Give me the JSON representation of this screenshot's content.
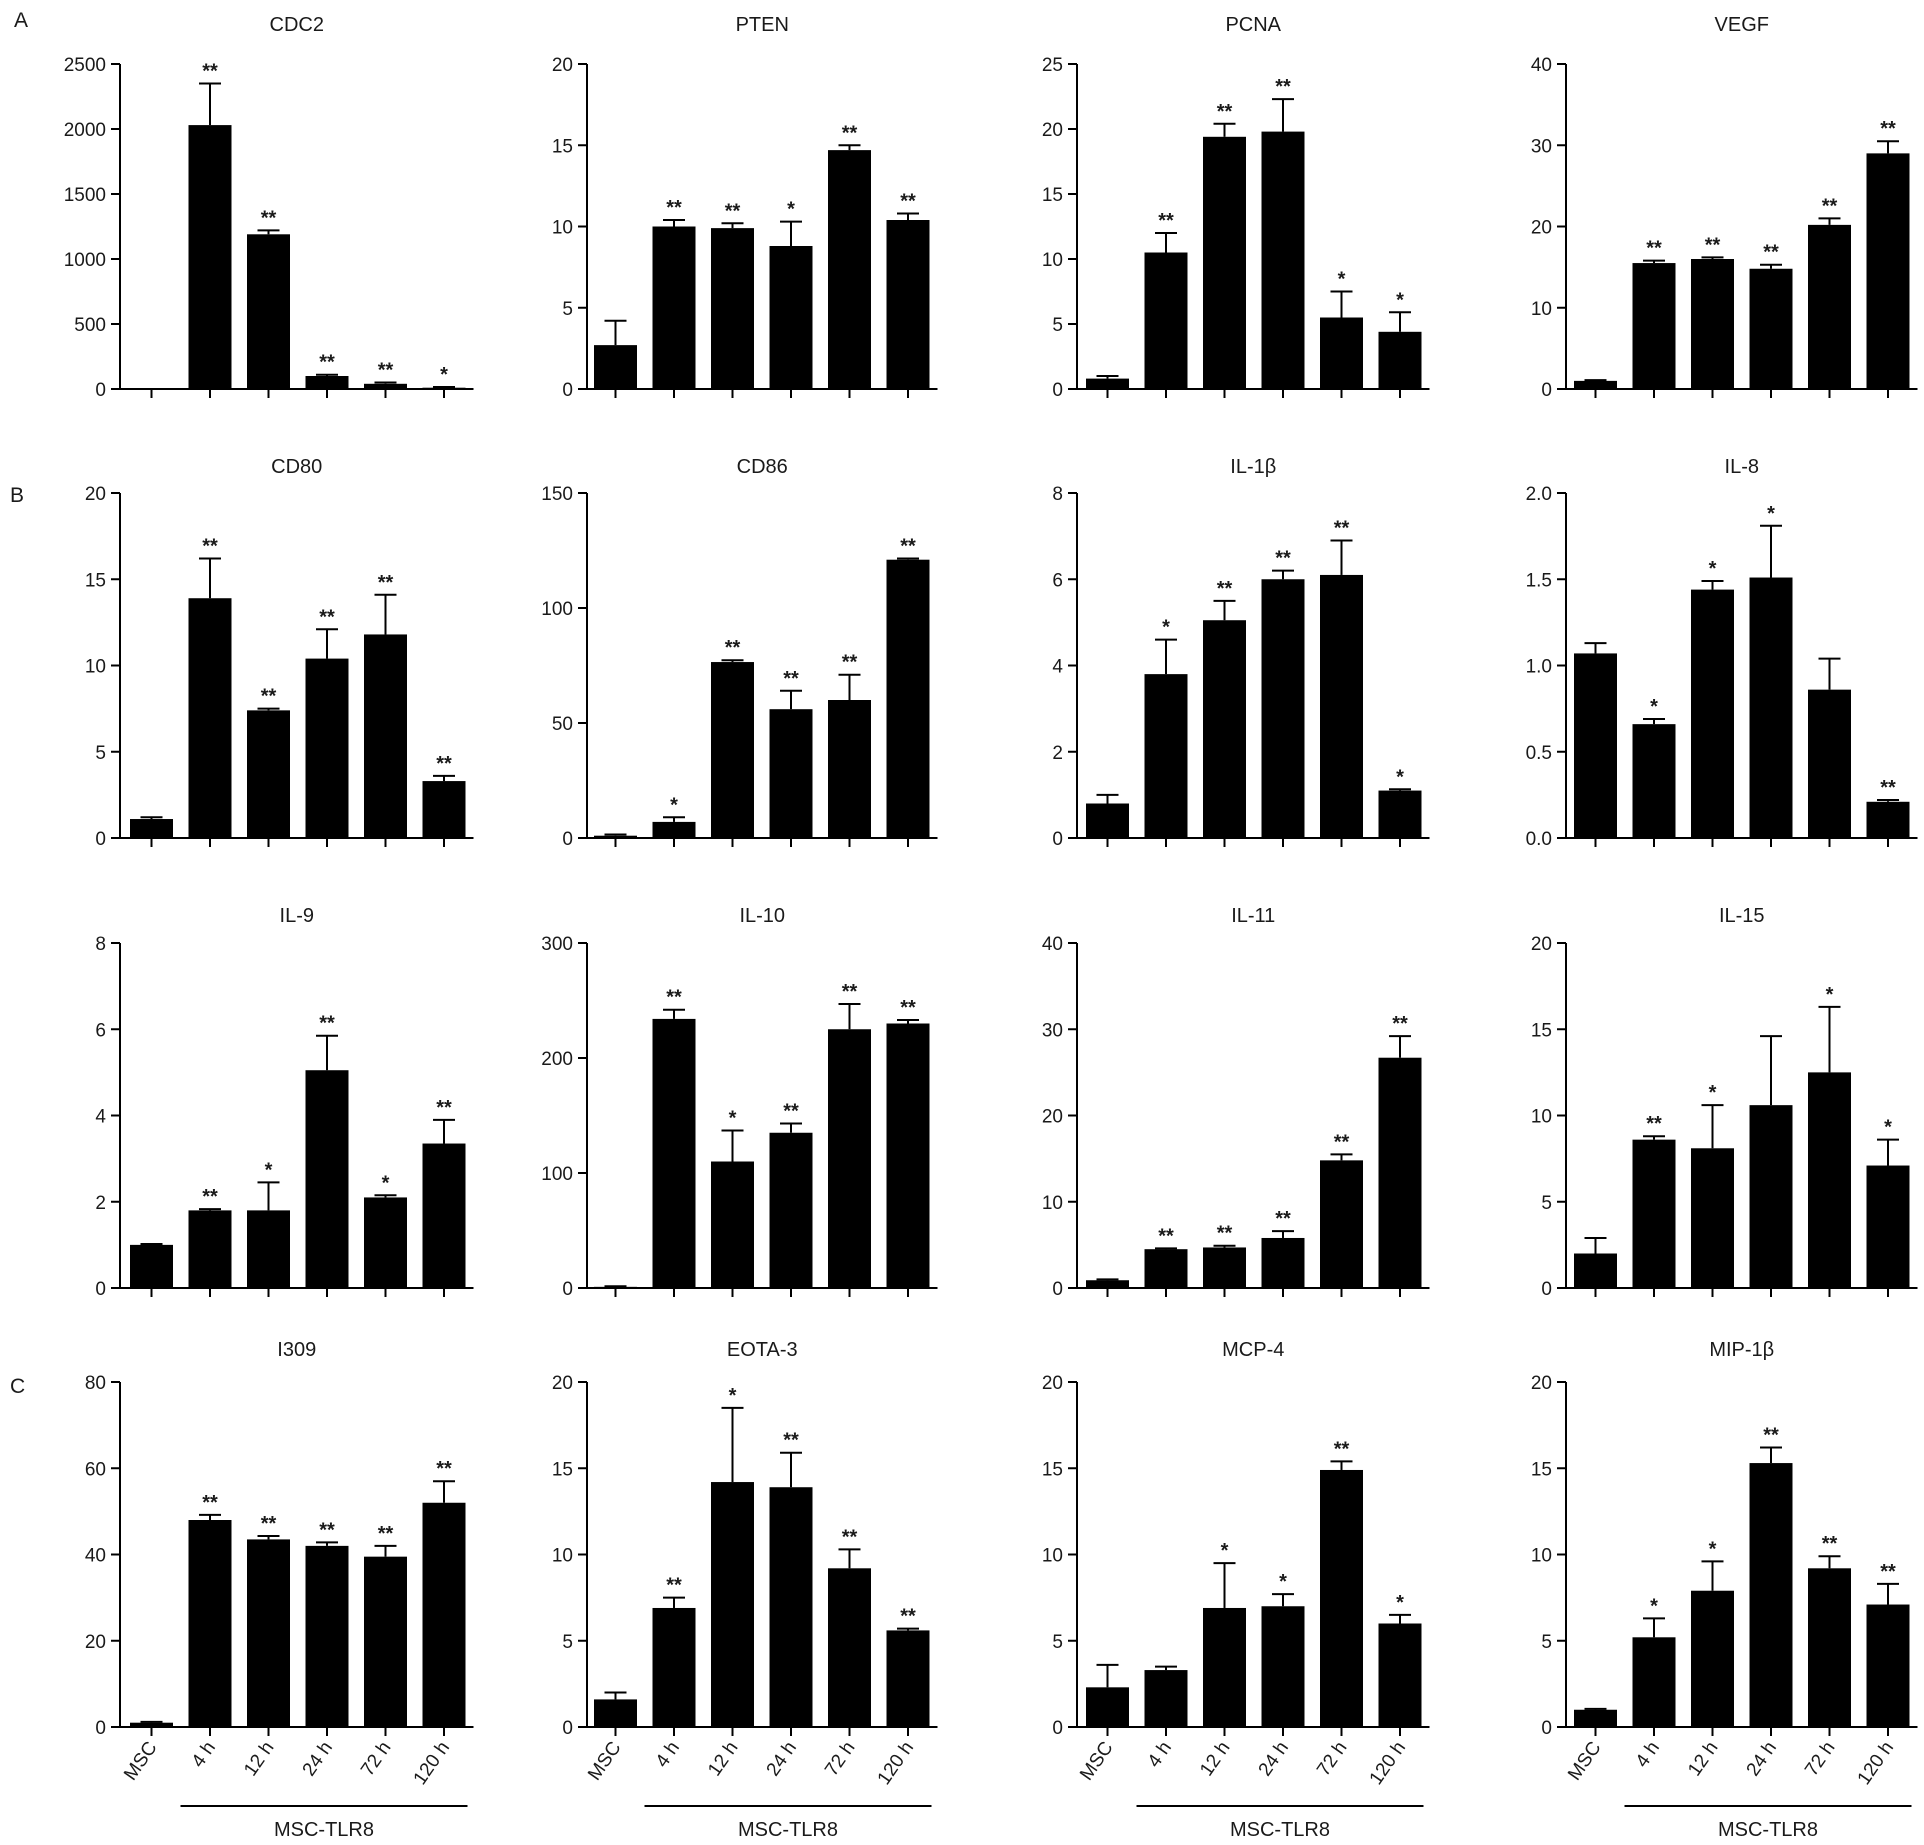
{
  "figure": {
    "panel_labels": [
      "A",
      "B",
      "C"
    ],
    "x_categories": [
      "MSC",
      "4 h",
      "12 h",
      "24 h",
      "72 h",
      "120 h"
    ],
    "group_label": "MSC-TLR8"
  },
  "chart_data": [
    {
      "type": "bar",
      "title": "CDC2",
      "categories": [
        "MSC",
        "4 h",
        "12 h",
        "24 h",
        "72 h",
        "120 h"
      ],
      "values": [
        0,
        2030,
        1190,
        100,
        40,
        10
      ],
      "errors": [
        0,
        320,
        30,
        10,
        10,
        5
      ],
      "significance": [
        "",
        "**",
        "**",
        "**",
        "**",
        "*"
      ],
      "ylim": [
        0,
        2500
      ],
      "yticks": [
        "0",
        "500",
        "1000",
        "1500",
        "2000",
        "2500"
      ]
    },
    {
      "type": "bar",
      "title": "PTEN",
      "categories": [
        "MSC",
        "4 h",
        "12 h",
        "24 h",
        "72 h",
        "120 h"
      ],
      "values": [
        2.7,
        10.0,
        9.9,
        8.8,
        14.7,
        10.4
      ],
      "errors": [
        1.5,
        0.4,
        0.3,
        1.5,
        0.3,
        0.4
      ],
      "significance": [
        "",
        "**",
        "**",
        "*",
        "**",
        "**"
      ],
      "ylim": [
        0,
        20
      ],
      "yticks": [
        "0",
        "5",
        "10",
        "15",
        "20"
      ]
    },
    {
      "type": "bar",
      "title": "PCNA",
      "categories": [
        "MSC",
        "4 h",
        "12 h",
        "24 h",
        "72 h",
        "120 h"
      ],
      "values": [
        0.8,
        10.5,
        19.4,
        19.8,
        5.5,
        4.4
      ],
      "errors": [
        0.2,
        1.5,
        1.0,
        2.5,
        2.0,
        1.5
      ],
      "significance": [
        "",
        "**",
        "**",
        "**",
        "*",
        "*"
      ],
      "ylim": [
        0,
        25
      ],
      "yticks": [
        "0",
        "5",
        "10",
        "15",
        "20",
        "25"
      ]
    },
    {
      "type": "bar",
      "title": "VEGF",
      "categories": [
        "MSC",
        "4 h",
        "12 h",
        "24 h",
        "72 h",
        "120 h"
      ],
      "values": [
        1.0,
        15.5,
        16.0,
        14.8,
        20.2,
        29.0
      ],
      "errors": [
        0.1,
        0.3,
        0.2,
        0.5,
        0.8,
        1.5
      ],
      "significance": [
        "",
        "**",
        "**",
        "**",
        "**",
        "**"
      ],
      "ylim": [
        0,
        40
      ],
      "yticks": [
        "0",
        "10",
        "20",
        "30",
        "40"
      ]
    },
    {
      "type": "bar",
      "title": "CD80",
      "categories": [
        "MSC",
        "4 h",
        "12 h",
        "24 h",
        "72 h",
        "120 h"
      ],
      "values": [
        1.1,
        13.9,
        7.4,
        10.4,
        11.8,
        3.3
      ],
      "errors": [
        0.1,
        2.3,
        0.1,
        1.7,
        2.3,
        0.3
      ],
      "significance": [
        "",
        "**",
        "**",
        "**",
        "**",
        "**"
      ],
      "ylim": [
        0,
        20
      ],
      "yticks": [
        "0",
        "5",
        "10",
        "15",
        "20"
      ]
    },
    {
      "type": "bar",
      "title": "CD86",
      "categories": [
        "MSC",
        "4 h",
        "12 h",
        "24 h",
        "72 h",
        "120 h"
      ],
      "values": [
        1.0,
        7.0,
        76.5,
        56.0,
        60.0,
        121.0
      ],
      "errors": [
        0.5,
        2.0,
        0.8,
        8.0,
        11.0,
        0.5
      ],
      "significance": [
        "",
        "*",
        "**",
        "**",
        "**",
        "**"
      ],
      "ylim": [
        0,
        150
      ],
      "yticks": [
        "0",
        "50",
        "100",
        "150"
      ]
    },
    {
      "type": "bar",
      "title": "IL-1β",
      "categories": [
        "MSC",
        "4 h",
        "12 h",
        "24 h",
        "72 h",
        "120 h"
      ],
      "values": [
        0.8,
        3.8,
        5.05,
        6.0,
        6.1,
        1.1
      ],
      "errors": [
        0.2,
        0.8,
        0.45,
        0.2,
        0.8,
        0.03
      ],
      "significance": [
        "",
        "*",
        "**",
        "**",
        "**",
        "*"
      ],
      "ylim": [
        0,
        8
      ],
      "yticks": [
        "0",
        "2",
        "4",
        "6",
        "8"
      ]
    },
    {
      "type": "bar",
      "title": "IL-8",
      "categories": [
        "MSC",
        "4 h",
        "12 h",
        "24 h",
        "72 h",
        "120 h"
      ],
      "values": [
        1.07,
        0.66,
        1.44,
        1.51,
        0.86,
        0.21
      ],
      "errors": [
        0.06,
        0.03,
        0.05,
        0.3,
        0.18,
        0.01
      ],
      "significance": [
        "",
        "*",
        "*",
        "*",
        "",
        "**"
      ],
      "ylim": [
        0,
        2.0
      ],
      "yticks": [
        "0.0",
        "0.5",
        "1.0",
        "1.5",
        "2.0"
      ]
    },
    {
      "type": "bar",
      "title": "IL-9",
      "categories": [
        "MSC",
        "4 h",
        "12 h",
        "24 h",
        "72 h",
        "120 h"
      ],
      "values": [
        1.0,
        1.8,
        1.8,
        5.05,
        2.1,
        3.35
      ],
      "errors": [
        0.02,
        0.03,
        0.65,
        0.8,
        0.05,
        0.55
      ],
      "significance": [
        "",
        "**",
        "*",
        "**",
        "*",
        "**"
      ],
      "ylim": [
        0,
        8
      ],
      "yticks": [
        "0",
        "2",
        "4",
        "6",
        "8"
      ]
    },
    {
      "type": "bar",
      "title": "IL-10",
      "categories": [
        "MSC",
        "4 h",
        "12 h",
        "24 h",
        "72 h",
        "120 h"
      ],
      "values": [
        1,
        234,
        110,
        135,
        225,
        230
      ],
      "errors": [
        0.5,
        8,
        27,
        8,
        22,
        3
      ],
      "significance": [
        "",
        "**",
        "*",
        "**",
        "**",
        "**"
      ],
      "ylim": [
        0,
        300
      ],
      "yticks": [
        "0",
        "100",
        "200",
        "300"
      ]
    },
    {
      "type": "bar",
      "title": "IL-11",
      "categories": [
        "MSC",
        "4 h",
        "12 h",
        "24 h",
        "72 h",
        "120 h"
      ],
      "values": [
        0.9,
        4.5,
        4.7,
        5.8,
        14.8,
        26.7
      ],
      "errors": [
        0.1,
        0.1,
        0.2,
        0.8,
        0.7,
        2.5
      ],
      "significance": [
        "",
        "**",
        "**",
        "**",
        "**",
        "**"
      ],
      "ylim": [
        0,
        40
      ],
      "yticks": [
        "0",
        "10",
        "20",
        "30",
        "40"
      ]
    },
    {
      "type": "bar",
      "title": "IL-15",
      "categories": [
        "MSC",
        "4 h",
        "12 h",
        "24 h",
        "72 h",
        "120 h"
      ],
      "values": [
        2.0,
        8.6,
        8.1,
        10.6,
        12.5,
        7.1
      ],
      "errors": [
        0.9,
        0.2,
        2.5,
        4.0,
        3.8,
        1.5
      ],
      "significance": [
        "",
        "**",
        "*",
        "",
        "*",
        "*"
      ],
      "ylim": [
        0,
        20
      ],
      "yticks": [
        "0",
        "5",
        "10",
        "15",
        "20"
      ]
    },
    {
      "type": "bar",
      "title": "I309",
      "categories": [
        "MSC",
        "4 h",
        "12 h",
        "24 h",
        "72 h",
        "120 h"
      ],
      "values": [
        1.0,
        48.0,
        43.5,
        42.0,
        39.5,
        52.0
      ],
      "errors": [
        0.2,
        1.2,
        0.8,
        0.8,
        2.5,
        5.0
      ],
      "significance": [
        "",
        "**",
        "**",
        "**",
        "**",
        "**"
      ],
      "ylim": [
        0,
        80
      ],
      "yticks": [
        "0",
        "20",
        "40",
        "60",
        "80"
      ]
    },
    {
      "type": "bar",
      "title": "EOTA-3",
      "categories": [
        "MSC",
        "4 h",
        "12 h",
        "24 h",
        "72 h",
        "120 h"
      ],
      "values": [
        1.6,
        6.9,
        14.2,
        13.9,
        9.2,
        5.6
      ],
      "errors": [
        0.4,
        0.6,
        4.3,
        2.0,
        1.1,
        0.1
      ],
      "significance": [
        "",
        "**",
        "*",
        "**",
        "**",
        "**"
      ],
      "ylim": [
        0,
        20
      ],
      "yticks": [
        "0",
        "5",
        "10",
        "15",
        "20"
      ]
    },
    {
      "type": "bar",
      "title": "MCP-4",
      "categories": [
        "MSC",
        "4 h",
        "12 h",
        "24 h",
        "72 h",
        "120 h"
      ],
      "values": [
        2.3,
        3.3,
        6.9,
        7.0,
        14.9,
        6.0
      ],
      "errors": [
        1.3,
        0.2,
        2.6,
        0.7,
        0.5,
        0.5
      ],
      "significance": [
        "",
        "",
        "*",
        "*",
        "**",
        "*"
      ],
      "ylim": [
        0,
        20
      ],
      "yticks": [
        "0",
        "5",
        "10",
        "15",
        "20"
      ]
    },
    {
      "type": "bar",
      "title": "MIP-1β",
      "categories": [
        "MSC",
        "4 h",
        "12 h",
        "24 h",
        "72 h",
        "120 h"
      ],
      "values": [
        1.0,
        5.2,
        7.9,
        15.3,
        9.2,
        7.1
      ],
      "errors": [
        0.05,
        1.1,
        1.7,
        0.9,
        0.7,
        1.2
      ],
      "significance": [
        "",
        "*",
        "*",
        "**",
        "**",
        "**"
      ],
      "ylim": [
        0,
        20
      ],
      "yticks": [
        "0",
        "5",
        "10",
        "15",
        "20"
      ]
    }
  ]
}
